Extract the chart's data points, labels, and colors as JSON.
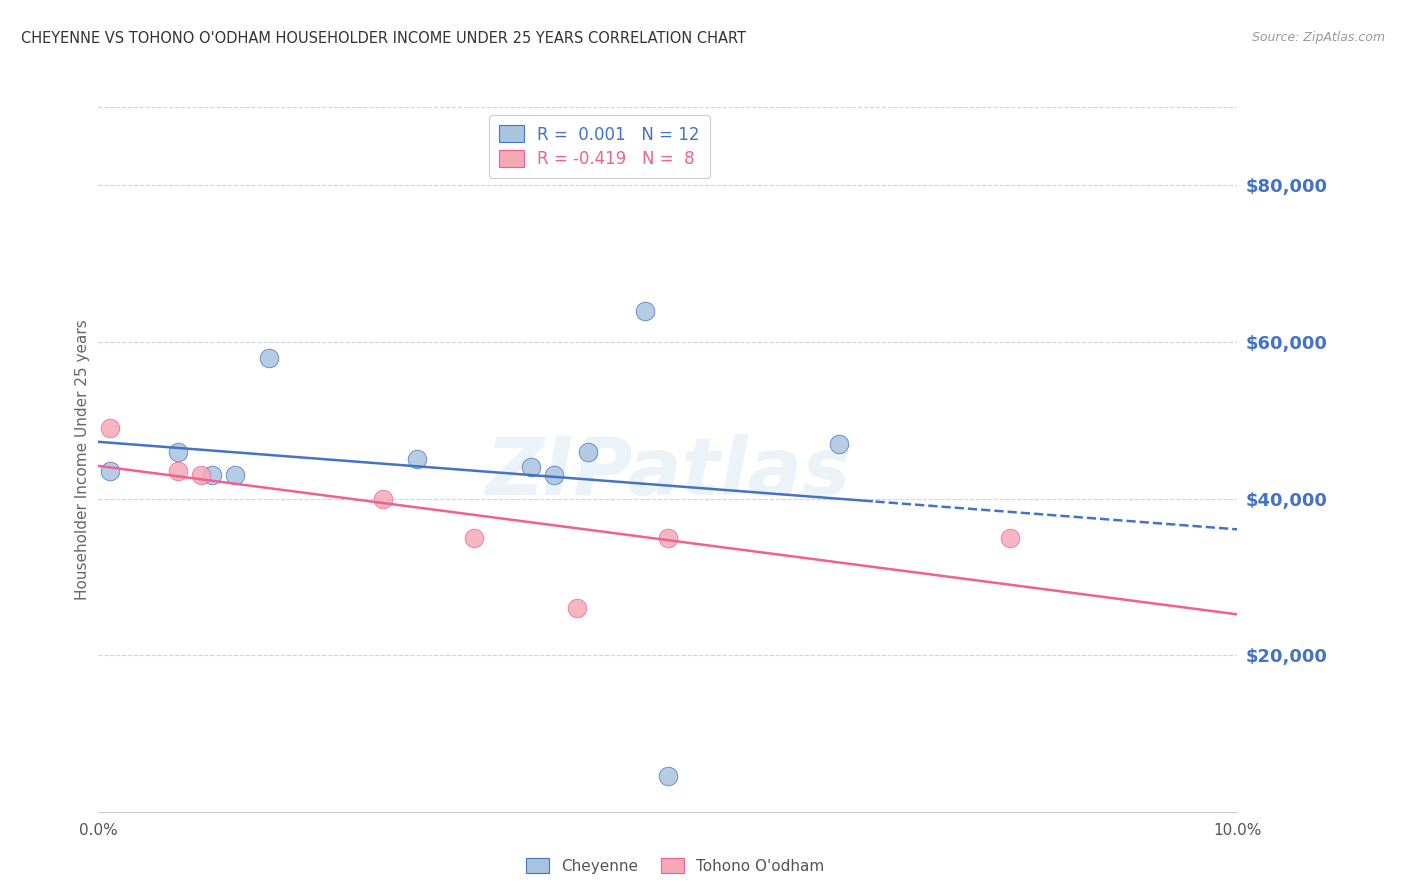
{
  "title": "CHEYENNE VS TOHONO O'ODHAM HOUSEHOLDER INCOME UNDER 25 YEARS CORRELATION CHART",
  "source": "Source: ZipAtlas.com",
  "ylabel": "Householder Income Under 25 years",
  "xlim": [
    0.0,
    0.1
  ],
  "ylim": [
    0,
    90000
  ],
  "ytick_labels": [
    "$20,000",
    "$40,000",
    "$60,000",
    "$80,000"
  ],
  "ytick_values": [
    20000,
    40000,
    60000,
    80000
  ],
  "watermark": "ZIPatlas",
  "cheyenne_color": "#a8c4e0",
  "tohono_color": "#f4a8b8",
  "cheyenne_line_color": "#4472c4",
  "tohono_line_color": "#f06090",
  "background_color": "#ffffff",
  "grid_color": "#c8d4e8",
  "title_color": "#333333",
  "ytick_color": "#4472c4",
  "source_color": "#999999",
  "cheyenne_x": [
    0.001,
    0.008,
    0.01,
    0.012,
    0.02,
    0.03,
    0.037,
    0.048,
    0.05,
    0.068,
    0.038,
    0.05
  ],
  "cheyenne_y": [
    43500,
    46000,
    43000,
    43000,
    57500,
    44000,
    46500,
    45500,
    63000,
    47000,
    42500,
    5000
  ],
  "tohono_x": [
    0.001,
    0.008,
    0.01,
    0.025,
    0.033,
    0.04,
    0.05,
    0.08
  ],
  "tohono_y": [
    48000,
    43000,
    44000,
    40000,
    38000,
    35000,
    27000,
    35000
  ],
  "cheyenne_size": 180,
  "tohono_size": 180,
  "legend_line1": "R =  0.001   N = 12",
  "legend_line2": "R = -0.419   N =  8"
}
